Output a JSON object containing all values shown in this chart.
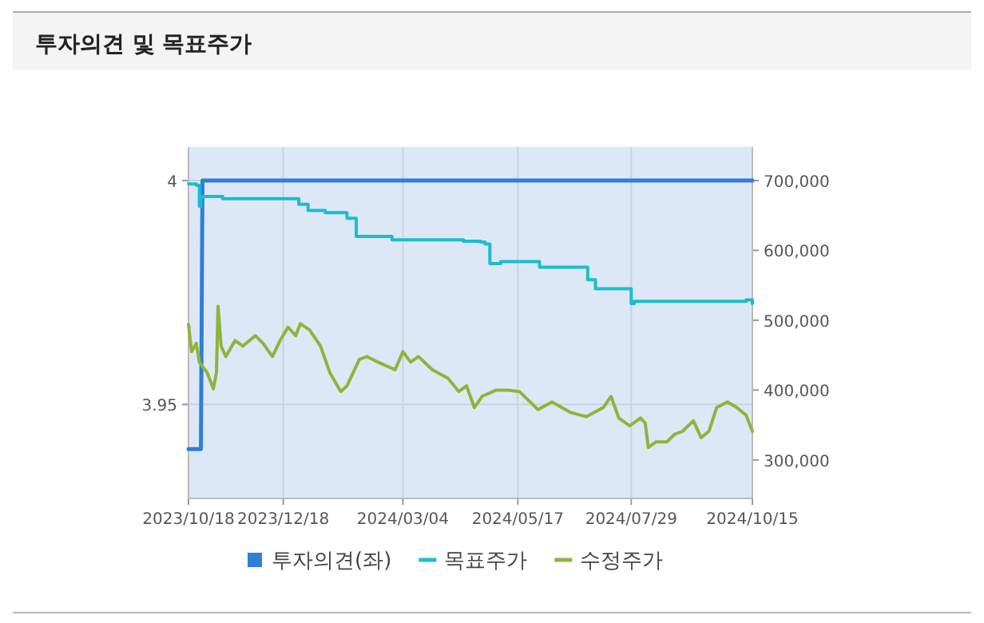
{
  "chart_data": {
    "type": "line",
    "title": "투자의견 및 목표주가",
    "xlim": [
      "2023-10-18",
      "2024-10-15"
    ],
    "xticks": [
      {
        "value": "2023-10-18",
        "label": "2023/10/18"
      },
      {
        "value": "2023-12-18",
        "label": "2023/12/18"
      },
      {
        "value": "2024-03-04",
        "label": "2024/03/04"
      },
      {
        "value": "2024-05-17",
        "label": "2024/05/17"
      },
      {
        "value": "2024-07-29",
        "label": "2024/07/29"
      },
      {
        "value": "2024-10-15",
        "label": "2024/10/15"
      }
    ],
    "ylim": [
      3.929,
      4.0075
    ],
    "yticks": [
      3.95,
      4
    ],
    "y2lim": [
      245000,
      748000
    ],
    "y2ticks": [
      {
        "value": 300000,
        "label": "300,000"
      },
      {
        "value": 400000,
        "label": "400,000"
      },
      {
        "value": 500000,
        "label": "500,000"
      },
      {
        "value": 600000,
        "label": "600,000"
      },
      {
        "value": 700000,
        "label": "700,000"
      }
    ],
    "grid": true,
    "legend": "bottom",
    "marker": "none",
    "series": [
      {
        "name": "투자의견(좌)",
        "color": "#2f7ed8",
        "x": [
          "2023-10-18",
          "2023-10-26",
          "2023-10-27",
          "2024-10-15"
        ],
        "values": [
          3.94,
          3.94,
          4,
          4
        ]
      },
      {
        "name": "목표주가",
        "type": "step",
        "axis": "y2",
        "color": "#1cbcd0",
        "x": [
          "2023-10-18",
          "2023-10-23",
          "2023-10-25",
          "2023-10-26",
          "2023-11-09",
          "2023-12-28",
          "2024-01-03",
          "2024-01-14",
          "2024-01-28",
          "2024-02-03",
          "2024-02-26",
          "2024-04-12",
          "2024-04-23",
          "2024-04-26",
          "2024-04-29",
          "2024-05-06",
          "2024-05-31",
          "2024-07-01",
          "2024-07-06",
          "2024-07-29",
          "2024-07-31",
          "2024-10-11",
          "2024-10-15"
        ],
        "values": [
          695000,
          693000,
          663000,
          677000,
          674000,
          666000,
          657000,
          654000,
          646000,
          620000,
          615000,
          613000,
          612000,
          609000,
          581000,
          584000,
          576000,
          558000,
          545000,
          524000,
          527000,
          529000,
          524000
        ]
      },
      {
        "name": "수정주가",
        "axis": "y2",
        "color": "#8db53c",
        "x": [
          "2023-10-18",
          "2023-10-20",
          "2023-10-23",
          "2023-10-25",
          "2023-10-30",
          "2023-11-03",
          "2023-11-05",
          "2023-11-06",
          "2023-11-08",
          "2023-11-11",
          "2023-11-17",
          "2023-11-22",
          "2023-11-30",
          "2023-12-05",
          "2023-12-11",
          "2023-12-16",
          "2023-12-21",
          "2023-12-26",
          "2023-12-29",
          "2024-01-04",
          "2024-01-11",
          "2024-01-17",
          "2024-01-24",
          "2024-01-28",
          "2024-02-05",
          "2024-02-10",
          "2024-02-17",
          "2024-02-28",
          "2024-03-04",
          "2024-03-09",
          "2024-03-14",
          "2024-03-23",
          "2024-04-02",
          "2024-04-09",
          "2024-04-14",
          "2024-04-19",
          "2024-04-24",
          "2024-05-03",
          "2024-05-11",
          "2024-05-18",
          "2024-05-30",
          "2024-06-08",
          "2024-06-20",
          "2024-06-30",
          "2024-07-11",
          "2024-07-16",
          "2024-07-21",
          "2024-07-28",
          "2024-08-04",
          "2024-08-07",
          "2024-08-09",
          "2024-08-14",
          "2024-08-21",
          "2024-08-26",
          "2024-08-31",
          "2024-09-07",
          "2024-09-12",
          "2024-09-17",
          "2024-09-22",
          "2024-09-29",
          "2024-10-05",
          "2024-10-11",
          "2024-10-15"
        ],
        "values": [
          494000,
          455000,
          467000,
          440000,
          425000,
          402000,
          425000,
          520000,
          463000,
          448000,
          471000,
          463000,
          478000,
          467000,
          448000,
          471000,
          490000,
          478000,
          495000,
          486000,
          463000,
          425000,
          398000,
          406000,
          444000,
          448000,
          440000,
          429000,
          455000,
          440000,
          448000,
          429000,
          417000,
          398000,
          406000,
          375000,
          391000,
          400000,
          400000,
          398000,
          372000,
          383000,
          368000,
          362000,
          375000,
          391000,
          360000,
          349000,
          360000,
          353000,
          318000,
          326000,
          326000,
          337000,
          341000,
          356000,
          332000,
          341000,
          375000,
          383000,
          375000,
          364000,
          341000
        ]
      }
    ]
  }
}
